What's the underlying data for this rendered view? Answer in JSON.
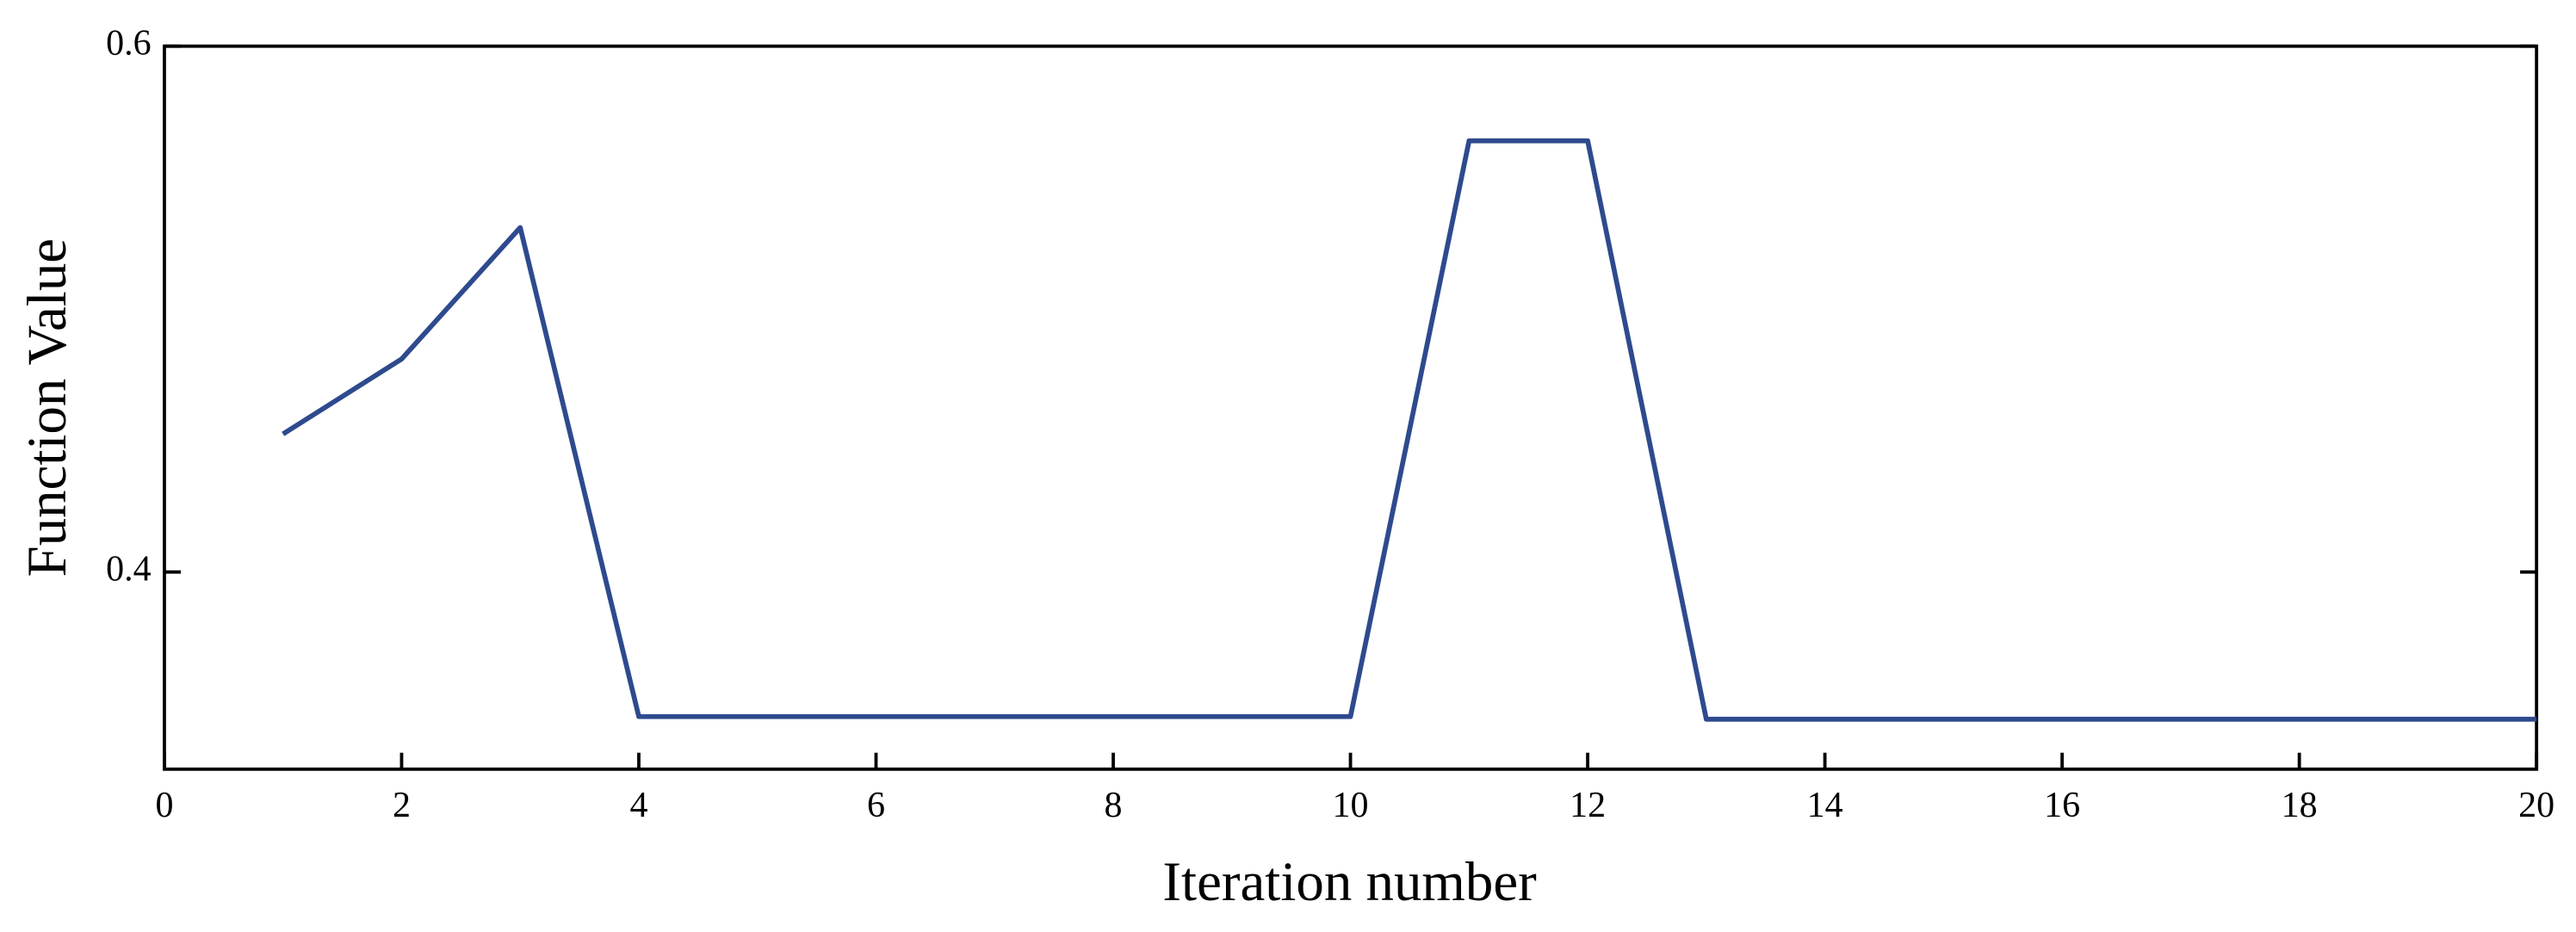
{
  "chart_data": {
    "type": "line",
    "x_label": "Iteration number",
    "y_label": "Function Value",
    "x": [
      1,
      2,
      3,
      4,
      5,
      6,
      7,
      8,
      9,
      10,
      11,
      12,
      13,
      14,
      15,
      16,
      17,
      18,
      19,
      20
    ],
    "series": [
      {
        "color": "#2e4a8e",
        "values": [
          0.4525,
          0.481,
          0.531,
          0.345,
          0.345,
          0.345,
          0.345,
          0.345,
          0.345,
          0.345,
          0.564,
          0.564,
          0.344,
          0.344,
          0.344,
          0.344,
          0.344,
          0.344,
          0.344,
          0.344
        ]
      }
    ],
    "xlim": [
      0,
      20
    ],
    "xticks": [
      0,
      2,
      4,
      6,
      8,
      10,
      12,
      14,
      16,
      18,
      20
    ],
    "ylim": [
      0.325,
      0.6
    ],
    "yticks": [
      0.4,
      0.6
    ],
    "grid": false
  }
}
